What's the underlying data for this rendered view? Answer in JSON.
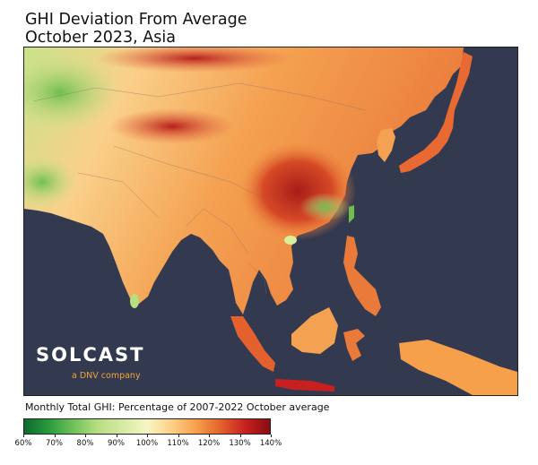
{
  "title": {
    "line1": "GHI Deviation From Average",
    "line2": "October 2023, Asia"
  },
  "logo": {
    "brand": "SOLCAST",
    "tagline": "a DNV company"
  },
  "colorbar": {
    "label": "Monthly Total GHI: Percentage of 2007-2022 October average",
    "ticks": [
      "60%",
      "70%",
      "80%",
      "90%",
      "100%",
      "110%",
      "120%",
      "130%",
      "140%"
    ],
    "min": 60,
    "max": 140
  },
  "colors": {
    "ocean": "#333a50",
    "green_dark": "#0b6a2f",
    "green_light": "#b7df82",
    "neutral": "#f6f6c4",
    "orange": "#f6a04c",
    "red": "#c8201f",
    "logo_accent": "#f2a33a"
  }
}
